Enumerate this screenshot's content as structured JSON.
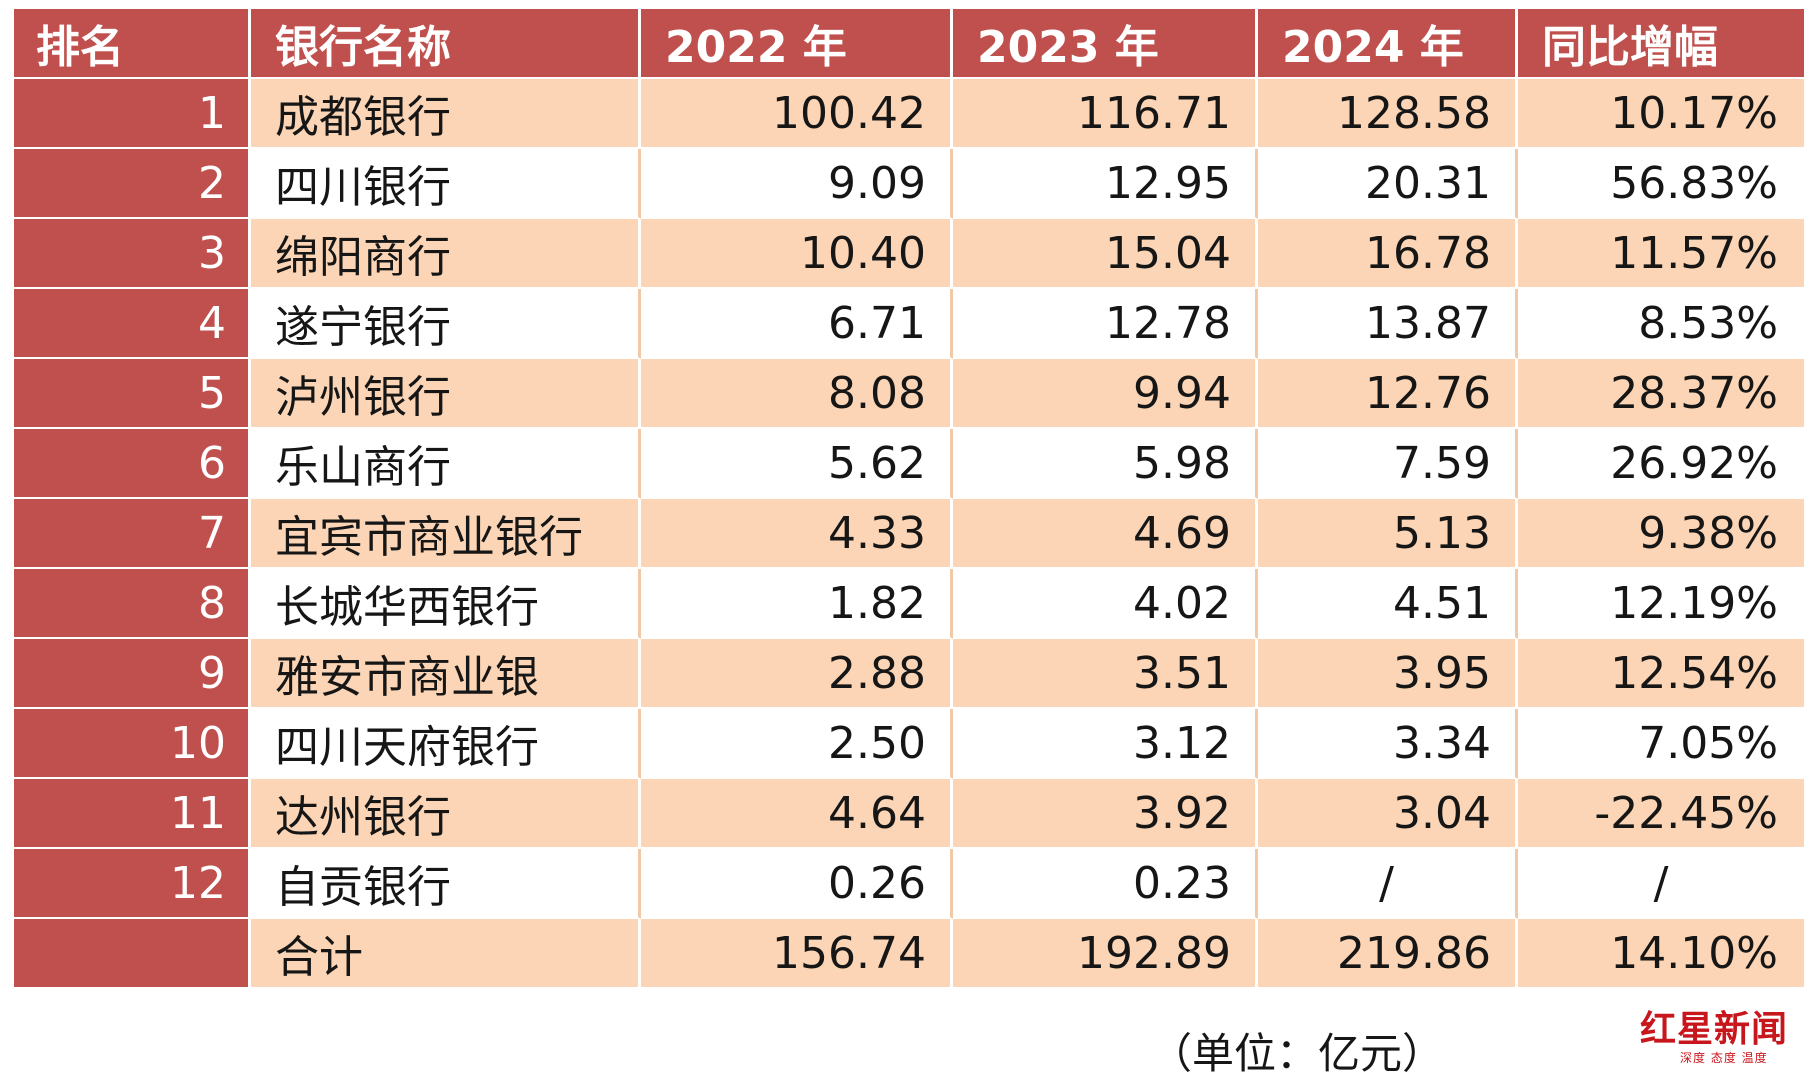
{
  "table": {
    "headers": {
      "rank": "排名",
      "name": "银行名称",
      "y2022": "2022 年",
      "y2023": "2023 年",
      "y2024": "2024 年",
      "yoy": "同比增幅"
    },
    "rows": [
      {
        "rank": "1",
        "name": "成都银行",
        "y2022": "100.42",
        "y2023": "116.71",
        "y2024": "128.58",
        "yoy": "10.17%"
      },
      {
        "rank": "2",
        "name": "四川银行",
        "y2022": "9.09",
        "y2023": "12.95",
        "y2024": "20.31",
        "yoy": "56.83%"
      },
      {
        "rank": "3",
        "name": "绵阳商行",
        "y2022": "10.40",
        "y2023": "15.04",
        "y2024": "16.78",
        "yoy": "11.57%"
      },
      {
        "rank": "4",
        "name": "遂宁银行",
        "y2022": "6.71",
        "y2023": "12.78",
        "y2024": "13.87",
        "yoy": "8.53%"
      },
      {
        "rank": "5",
        "name": "泸州银行",
        "y2022": "8.08",
        "y2023": "9.94",
        "y2024": "12.76",
        "yoy": "28.37%"
      },
      {
        "rank": "6",
        "name": "乐山商行",
        "y2022": "5.62",
        "y2023": "5.98",
        "y2024": "7.59",
        "yoy": "26.92%"
      },
      {
        "rank": "7",
        "name": "宜宾市商业银行",
        "y2022": "4.33",
        "y2023": "4.69",
        "y2024": "5.13",
        "yoy": "9.38%"
      },
      {
        "rank": "8",
        "name": "长城华西银行",
        "y2022": "1.82",
        "y2023": "4.02",
        "y2024": "4.51",
        "yoy": "12.19%"
      },
      {
        "rank": "9",
        "name": "雅安市商业银",
        "y2022": "2.88",
        "y2023": "3.51",
        "y2024": "3.95",
        "yoy": "12.54%"
      },
      {
        "rank": "10",
        "name": "四川天府银行",
        "y2022": "2.50",
        "y2023": "3.12",
        "y2024": "3.34",
        "yoy": "7.05%"
      },
      {
        "rank": "11",
        "name": "达州银行",
        "y2022": "4.64",
        "y2023": "3.92",
        "y2024": "3.04",
        "yoy": "-22.45%"
      },
      {
        "rank": "12",
        "name": "自贡银行",
        "y2022": "0.26",
        "y2023": "0.23",
        "y2024": "/",
        "yoy": "/"
      },
      {
        "rank": "",
        "name": "合计",
        "y2022": "156.74",
        "y2023": "192.89",
        "y2024": "219.86",
        "yoy": "14.10%"
      }
    ]
  },
  "unit_note": "（单位：亿元）",
  "logo": {
    "main": "红星新闻",
    "sub": "深度 态度 温度"
  },
  "colors": {
    "header_red": "#c0504d",
    "band_peach": "#fbd5b5",
    "logo_red": "#c8161d"
  }
}
